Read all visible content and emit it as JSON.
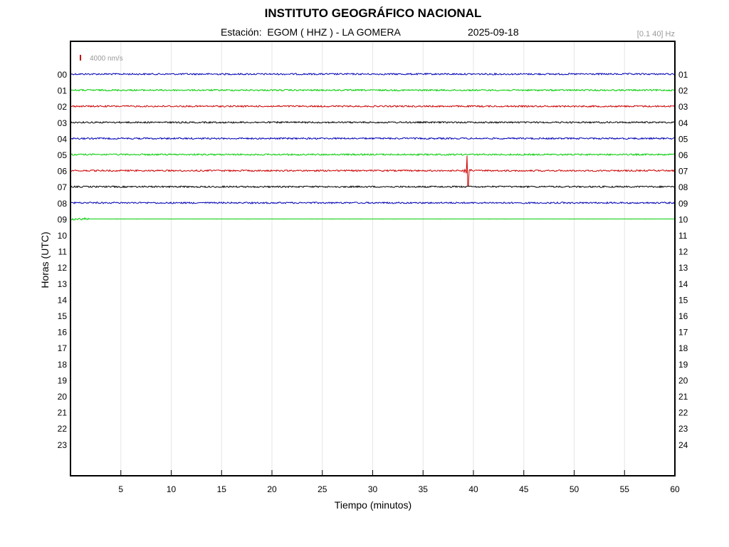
{
  "header": {
    "title": "INSTITUTO GEOGRÁFICO NACIONAL",
    "station_line": "Estación:  EGOM ( HHZ ) - LA GOMERA",
    "date": "2025-09-18",
    "filter": "[0.1 40] Hz"
  },
  "chart_data": {
    "type": "line",
    "title": "INSTITUTO GEOGRÁFICO NACIONAL",
    "xlabel": "Tiempo (minutos)",
    "ylabel": "Horas (UTC)",
    "xlim": [
      0,
      60
    ],
    "x_ticks": [
      5,
      10,
      15,
      20,
      25,
      30,
      35,
      40,
      45,
      50,
      55,
      60
    ],
    "left_hour_labels": [
      "00",
      "01",
      "02",
      "03",
      "04",
      "05",
      "06",
      "07",
      "08",
      "09",
      "10",
      "11",
      "12",
      "13",
      "14",
      "15",
      "16",
      "17",
      "18",
      "19",
      "20",
      "21",
      "22",
      "23"
    ],
    "right_hour_labels": [
      "01",
      "02",
      "03",
      "04",
      "05",
      "06",
      "07",
      "08",
      "09",
      "10",
      "11",
      "12",
      "13",
      "14",
      "15",
      "16",
      "17",
      "18",
      "19",
      "20",
      "21",
      "22",
      "23",
      "24"
    ],
    "scale_bar_label": "4000 nm/s",
    "grid": "vertical",
    "trace_colors": [
      "#0000b4",
      "#00cc00",
      "#cc0000",
      "#000000"
    ],
    "traces": [
      {
        "hour": "00",
        "color": "#0000b4",
        "end_minute": 60
      },
      {
        "hour": "01",
        "color": "#00cc00",
        "end_minute": 60
      },
      {
        "hour": "02",
        "color": "#cc0000",
        "end_minute": 60
      },
      {
        "hour": "03",
        "color": "#000000",
        "end_minute": 60
      },
      {
        "hour": "04",
        "color": "#0000b4",
        "end_minute": 60
      },
      {
        "hour": "05",
        "color": "#00cc00",
        "end_minute": 60
      },
      {
        "hour": "06",
        "color": "#cc0000",
        "end_minute": 60,
        "event_minute": 39.4
      },
      {
        "hour": "07",
        "color": "#000000",
        "end_minute": 60
      },
      {
        "hour": "08",
        "color": "#0000b4",
        "end_minute": 60
      },
      {
        "hour": "09",
        "color": "#00cc00",
        "end_minute": 60,
        "noisy_until_minute": 1.8
      }
    ]
  }
}
